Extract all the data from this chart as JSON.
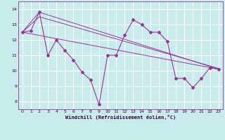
{
  "xlabel": "Windchill (Refroidissement éolien,°C)",
  "background_color": "#c8ecec",
  "line_color": "#993399",
  "grid_color": "#ffffff",
  "xlim": [
    -0.5,
    23.5
  ],
  "ylim": [
    7.5,
    14.5
  ],
  "yticks": [
    8,
    9,
    10,
    11,
    12,
    13,
    14
  ],
  "xticks": [
    0,
    1,
    2,
    3,
    4,
    5,
    6,
    7,
    8,
    9,
    10,
    11,
    12,
    13,
    14,
    15,
    16,
    17,
    18,
    19,
    20,
    21,
    22,
    23
  ],
  "series1": [
    12.5,
    12.6,
    13.8,
    11.0,
    12.0,
    11.3,
    10.7,
    9.9,
    9.4,
    7.8,
    11.0,
    11.0,
    12.3,
    13.3,
    13.0,
    12.5,
    12.5,
    11.9,
    9.5,
    9.5,
    8.9,
    9.5,
    10.2,
    10.1
  ],
  "series2_x": [
    0,
    23
  ],
  "series2_y": [
    12.5,
    10.1
  ],
  "series3_x": [
    0,
    2,
    23
  ],
  "series3_y": [
    12.5,
    13.8,
    10.1
  ],
  "series4_x": [
    0,
    2,
    23
  ],
  "series4_y": [
    12.5,
    13.5,
    10.15
  ]
}
